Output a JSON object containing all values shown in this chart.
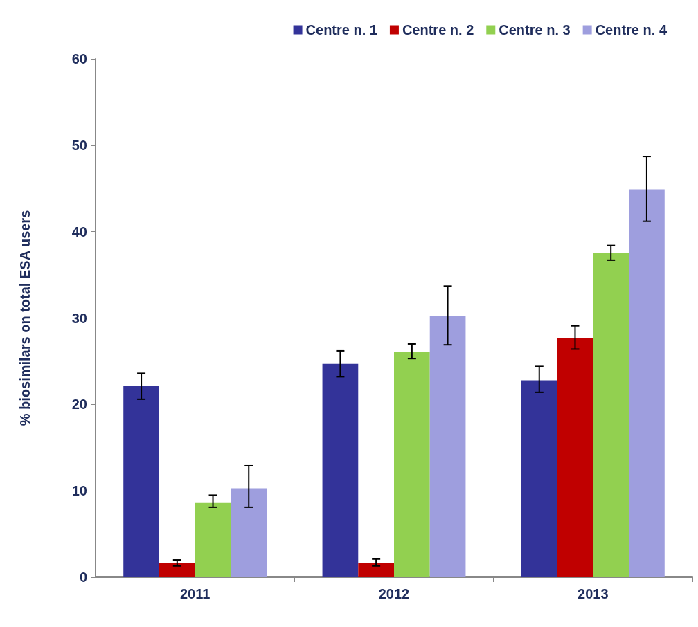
{
  "chart_data": {
    "type": "bar",
    "ylabel": "% biosimilars on total ESA users",
    "categories": [
      "2011",
      "2012",
      "2013"
    ],
    "series": [
      {
        "name": "Centre n. 1",
        "color": "#333399",
        "values": [
          22.1,
          24.7,
          22.8
        ],
        "errors": [
          [
            20.6,
            23.6
          ],
          [
            23.2,
            26.2
          ],
          [
            21.4,
            24.4
          ]
        ]
      },
      {
        "name": "Centre n. 2",
        "color": "#c00000",
        "values": [
          1.6,
          1.6,
          27.7
        ],
        "errors": [
          [
            1.3,
            2.0
          ],
          [
            1.3,
            2.1
          ],
          [
            26.4,
            29.1
          ]
        ]
      },
      {
        "name": "Centre n. 3",
        "color": "#92d050",
        "values": [
          8.6,
          26.1,
          37.5
        ],
        "errors": [
          [
            8.1,
            9.5
          ],
          [
            25.3,
            27.0
          ],
          [
            36.7,
            38.4
          ]
        ]
      },
      {
        "name": "Centre n. 4",
        "color": "#9e9ede",
        "values": [
          10.3,
          30.2,
          44.9
        ],
        "errors": [
          [
            8.1,
            12.9
          ],
          [
            26.9,
            33.7
          ],
          [
            41.2,
            48.7
          ]
        ]
      }
    ],
    "ylim": [
      0,
      60
    ],
    "yticks": [
      0,
      10,
      20,
      30,
      40,
      50,
      60
    ],
    "grid": false,
    "legend": "top right"
  }
}
